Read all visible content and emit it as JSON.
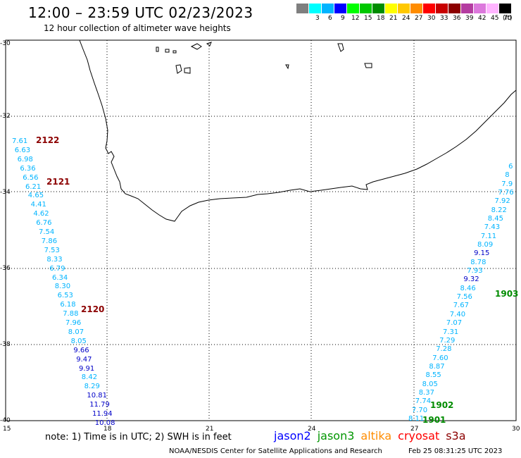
{
  "title": "12:00 – 23:59 UTC 02/23/2023",
  "subtitle": "12 hour collection of altimeter wave heights",
  "colorbar": {
    "unit": "(ft)",
    "items": [
      {
        "color": "#7f7f7f",
        "label": ""
      },
      {
        "color": "#00ffff",
        "label": "3"
      },
      {
        "color": "#00b4ff",
        "label": "6"
      },
      {
        "color": "#0000ff",
        "label": "9"
      },
      {
        "color": "#00ff00",
        "label": "12"
      },
      {
        "color": "#00c800",
        "label": "15"
      },
      {
        "color": "#008c00",
        "label": "18"
      },
      {
        "color": "#ffff00",
        "label": "21"
      },
      {
        "color": "#ffc800",
        "label": "24"
      },
      {
        "color": "#ff8c00",
        "label": "27"
      },
      {
        "color": "#ff0000",
        "label": "30"
      },
      {
        "color": "#c80000",
        "label": "33"
      },
      {
        "color": "#8c0000",
        "label": "36"
      },
      {
        "color": "#b43ca0",
        "label": "39"
      },
      {
        "color": "#dc78dc",
        "label": "42"
      },
      {
        "color": "#ffb4ff",
        "label": "45"
      },
      {
        "color": "#000000",
        "label": "70"
      }
    ]
  },
  "lat_labels": [
    "-30",
    "-32",
    "-34",
    "-36",
    "-38",
    "-40"
  ],
  "lon_labels": [
    "15",
    "18",
    "21",
    "24",
    "27",
    "30"
  ],
  "note": "note:  1) Time is in UTC; 2) SWH is in feet",
  "satellites": [
    {
      "name": "jason2",
      "color": "#0000ff"
    },
    {
      "name": "jason3",
      "color": "#009600"
    },
    {
      "name": "altika",
      "color": "#ff8c00"
    },
    {
      "name": "cryosat",
      "color": "#ff0000"
    },
    {
      "name": "s3a",
      "color": "#8c0000"
    }
  ],
  "credit": "NOAA/NESDIS Center for Satellite Applications and Research",
  "generated": "Feb 25 08:31:25 UTC 2023",
  "passes": [
    {
      "time": "2122",
      "color": "#8c0000"
    },
    {
      "time": "2121",
      "color": "#8c0000"
    },
    {
      "time": "2120",
      "color": "#8c0000"
    },
    {
      "time": "1903",
      "color": "#008c00"
    },
    {
      "time": "1902",
      "color": "#008c00"
    },
    {
      "time": "1901",
      "color": "#008c00"
    }
  ],
  "west_track": [
    {
      "v": "7.61",
      "c": "#00b4ff"
    },
    {
      "v": "6.63",
      "c": "#00b4ff"
    },
    {
      "v": "6.98",
      "c": "#00b4ff"
    },
    {
      "v": "6.36",
      "c": "#00b4ff"
    },
    {
      "v": "6.56",
      "c": "#00b4ff"
    },
    {
      "v": "6.21",
      "c": "#00b4ff"
    },
    {
      "v": "4.65",
      "c": "#00b4ff"
    },
    {
      "v": "4.41",
      "c": "#00b4ff"
    },
    {
      "v": "4.62",
      "c": "#00b4ff"
    },
    {
      "v": "6.76",
      "c": "#00b4ff"
    },
    {
      "v": "7.54",
      "c": "#00b4ff"
    },
    {
      "v": "7.86",
      "c": "#00b4ff"
    },
    {
      "v": "7.53",
      "c": "#00b4ff"
    },
    {
      "v": "8.33",
      "c": "#00b4ff"
    },
    {
      "v": "6.79",
      "c": "#00b4ff"
    },
    {
      "v": "6.34",
      "c": "#00b4ff"
    },
    {
      "v": "8.30",
      "c": "#00b4ff"
    },
    {
      "v": "6.53",
      "c": "#00b4ff"
    },
    {
      "v": "6.18",
      "c": "#00b4ff"
    },
    {
      "v": "7.88",
      "c": "#00b4ff"
    },
    {
      "v": "7.96",
      "c": "#00b4ff"
    },
    {
      "v": "8.07",
      "c": "#00b4ff"
    },
    {
      "v": "8.05",
      "c": "#00b4ff"
    },
    {
      "v": "9.66",
      "c": "#0000c8"
    },
    {
      "v": "9.47",
      "c": "#0000c8"
    },
    {
      "v": "9.91",
      "c": "#0000c8"
    },
    {
      "v": "8.42",
      "c": "#00b4ff"
    },
    {
      "v": "8.29",
      "c": "#00b4ff"
    },
    {
      "v": "10.81",
      "c": "#0000c8"
    },
    {
      "v": "11.79",
      "c": "#0000c8"
    },
    {
      "v": "11.94",
      "c": "#0000c8"
    },
    {
      "v": "10.08",
      "c": "#0000c8"
    }
  ],
  "east_track": [
    {
      "v": "8.11",
      "c": "#00b4ff"
    },
    {
      "v": "7.70",
      "c": "#00b4ff"
    },
    {
      "v": "7.74",
      "c": "#00b4ff"
    },
    {
      "v": "8.37",
      "c": "#00b4ff"
    },
    {
      "v": "8.05",
      "c": "#00b4ff"
    },
    {
      "v": "8.55",
      "c": "#00b4ff"
    },
    {
      "v": "8.87",
      "c": "#00b4ff"
    },
    {
      "v": "7.60",
      "c": "#00b4ff"
    },
    {
      "v": "7.28",
      "c": "#00b4ff"
    },
    {
      "v": "7.29",
      "c": "#00b4ff"
    },
    {
      "v": "7.31",
      "c": "#00b4ff"
    },
    {
      "v": "7.07",
      "c": "#00b4ff"
    },
    {
      "v": "7.40",
      "c": "#00b4ff"
    },
    {
      "v": "7.67",
      "c": "#00b4ff"
    },
    {
      "v": "7.56",
      "c": "#00b4ff"
    },
    {
      "v": "8.46",
      "c": "#00b4ff"
    },
    {
      "v": "9.32",
      "c": "#0000c8"
    },
    {
      "v": "7.93",
      "c": "#00b4ff"
    },
    {
      "v": "8.78",
      "c": "#00b4ff"
    },
    {
      "v": "9.15",
      "c": "#0000c8"
    },
    {
      "v": "8.09",
      "c": "#00b4ff"
    },
    {
      "v": "7.11",
      "c": "#00b4ff"
    },
    {
      "v": "7.43",
      "c": "#00b4ff"
    },
    {
      "v": "8.45",
      "c": "#00b4ff"
    },
    {
      "v": "8.22",
      "c": "#00b4ff"
    },
    {
      "v": "7.92",
      "c": "#00b4ff"
    },
    {
      "v": "7.76",
      "c": "#00b4ff"
    },
    {
      "v": "7.9",
      "c": "#00b4ff"
    },
    {
      "v": "8",
      "c": "#00b4ff"
    },
    {
      "v": "6",
      "c": "#00b4ff"
    }
  ]
}
